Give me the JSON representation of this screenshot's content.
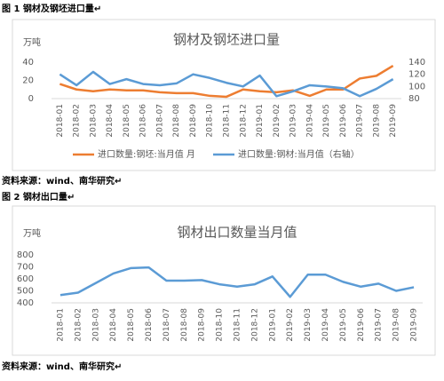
{
  "captions": [
    "图 1  钢材及钢坯进口量↵",
    "图 2  钢材出口量↵"
  ],
  "sources": [
    "资料来源：wind、南华研究↵",
    "资料来源：wind、南华研究↵"
  ],
  "chart_data": [
    {
      "type": "line",
      "title": "钢材及钢坯进口量",
      "y_label": "万吨",
      "categories": [
        "2018-01",
        "2018-02",
        "2018-03",
        "2018-04",
        "2018-05",
        "2018-06",
        "2018-07",
        "2018-08",
        "2018-09",
        "2018-10",
        "2018-11",
        "2018-12",
        "2019-01",
        "2019-02",
        "2019-03",
        "2019-04",
        "2019-05",
        "2019-06",
        "2019-07",
        "2019-08",
        "2019-09"
      ],
      "series": [
        {
          "name": "进口数量:钢坯:当月值 月",
          "color": "#ed7d31",
          "values": [
            16,
            10,
            8,
            10,
            9,
            9,
            7,
            6,
            6,
            3,
            2,
            10,
            8,
            7,
            9,
            3,
            10,
            10,
            22,
            25,
            36
          ]
        },
        {
          "name": "进口数量:钢材:当月值（右轴）",
          "color": "#5b9bd5",
          "axis": "y2",
          "values": [
            120,
            102,
            124,
            104,
            112,
            104,
            102,
            105,
            120,
            114,
            106,
            100,
            118,
            84,
            92,
            102,
            100,
            97,
            84,
            96,
            112
          ]
        }
      ],
      "ylim": [
        0,
        40
      ],
      "yticks": [
        0,
        20,
        40
      ],
      "y2lim": [
        80,
        140
      ],
      "y2ticks": [
        80,
        100,
        120,
        140
      ],
      "grid": false,
      "legend": "bottom"
    },
    {
      "type": "line",
      "title": "钢材出口数量当月值",
      "y_label": "万吨",
      "categories": [
        "2018-01",
        "2018-02",
        "2018-03",
        "2018-04",
        "2018-05",
        "2018-06",
        "2018-07",
        "2018-08",
        "2018-09",
        "2018-10",
        "2018-11",
        "2018-12",
        "2019-01",
        "2019-02",
        "2019-03",
        "2019-04",
        "2019-05",
        "2019-06",
        "2019-07",
        "2019-08",
        "2019-09"
      ],
      "values": [
        465,
        485,
        565,
        645,
        690,
        695,
        585,
        585,
        590,
        555,
        535,
        555,
        620,
        450,
        635,
        635,
        575,
        535,
        560,
        500,
        530
      ],
      "color": "#5b9bd5",
      "ylim": [
        400,
        800
      ],
      "yticks": [
        400,
        500,
        600,
        700,
        800
      ],
      "grid": false
    }
  ]
}
